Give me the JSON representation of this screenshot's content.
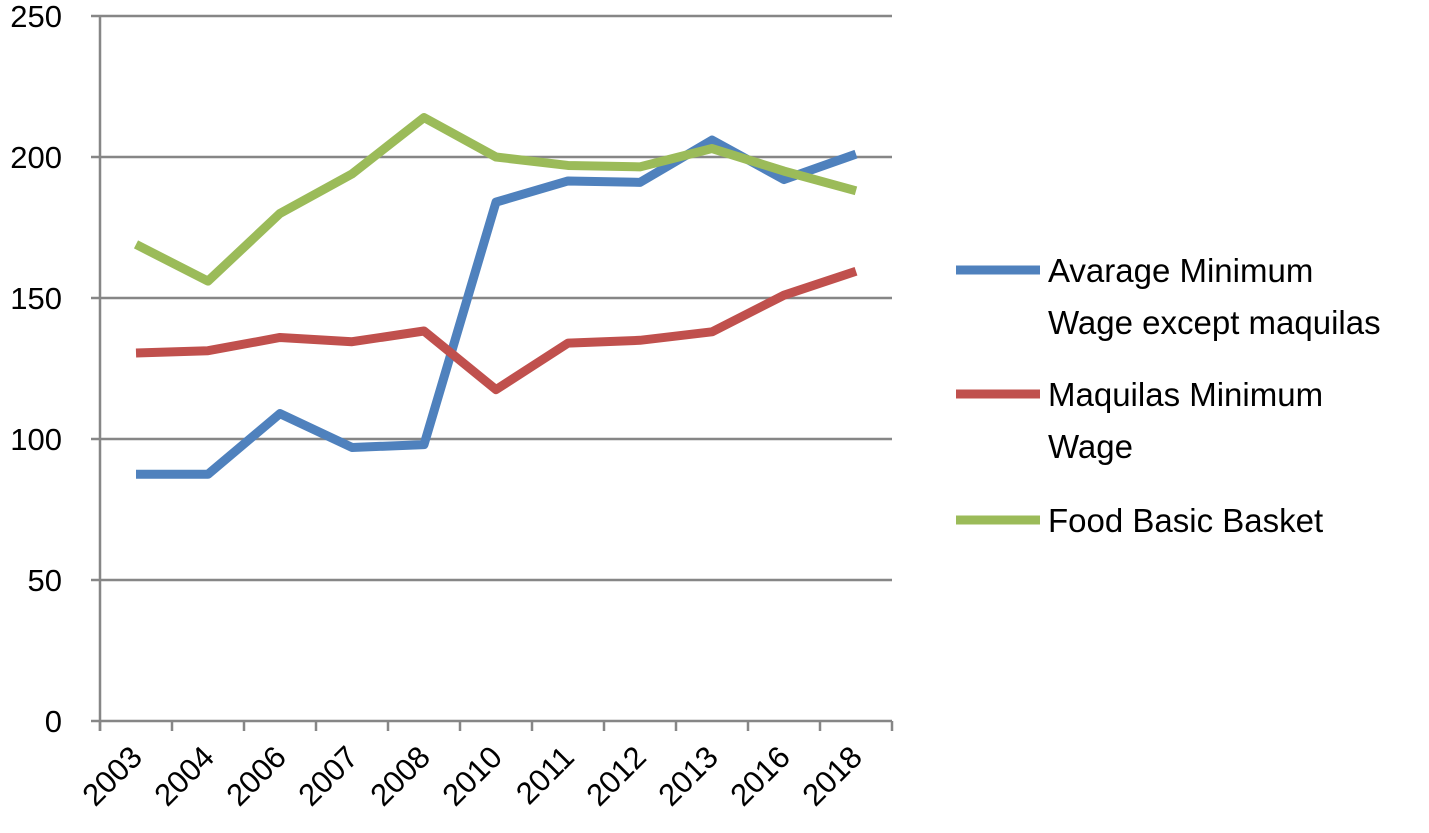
{
  "chart_data": {
    "type": "line",
    "categories": [
      "2003",
      "2004",
      "2006",
      "2007",
      "2008",
      "2010",
      "2011",
      "2012",
      "2013",
      "2016",
      "2018"
    ],
    "series": [
      {
        "name": "Avarage Minimum Wage except maquilas",
        "legend_lines": [
          "Avarage Minimum",
          "Wage except maquilas"
        ],
        "color": "#4f81bd",
        "values": [
          87.5,
          87.5,
          109,
          97,
          98,
          184,
          191.5,
          191,
          206,
          192,
          201
        ]
      },
      {
        "name": "Maquilas Minimum Wage",
        "legend_lines": [
          "Maquilas Minimum",
          "Wage"
        ],
        "color": "#c0504d",
        "values": [
          130.5,
          131.3,
          136,
          134.5,
          138.3,
          117.5,
          134,
          135,
          138,
          151,
          159.5
        ]
      },
      {
        "name": "Food Basic Basket",
        "legend_lines": [
          "Food Basic Basket"
        ],
        "color": "#9bbb59",
        "values": [
          169,
          156,
          180,
          194,
          214,
          200,
          197,
          196.5,
          203,
          195,
          188
        ]
      }
    ],
    "yticks": [
      "0",
      "50",
      "100",
      "150",
      "200",
      "250"
    ],
    "ylim": [
      0,
      250
    ],
    "grid": true,
    "legend_position": "right"
  }
}
